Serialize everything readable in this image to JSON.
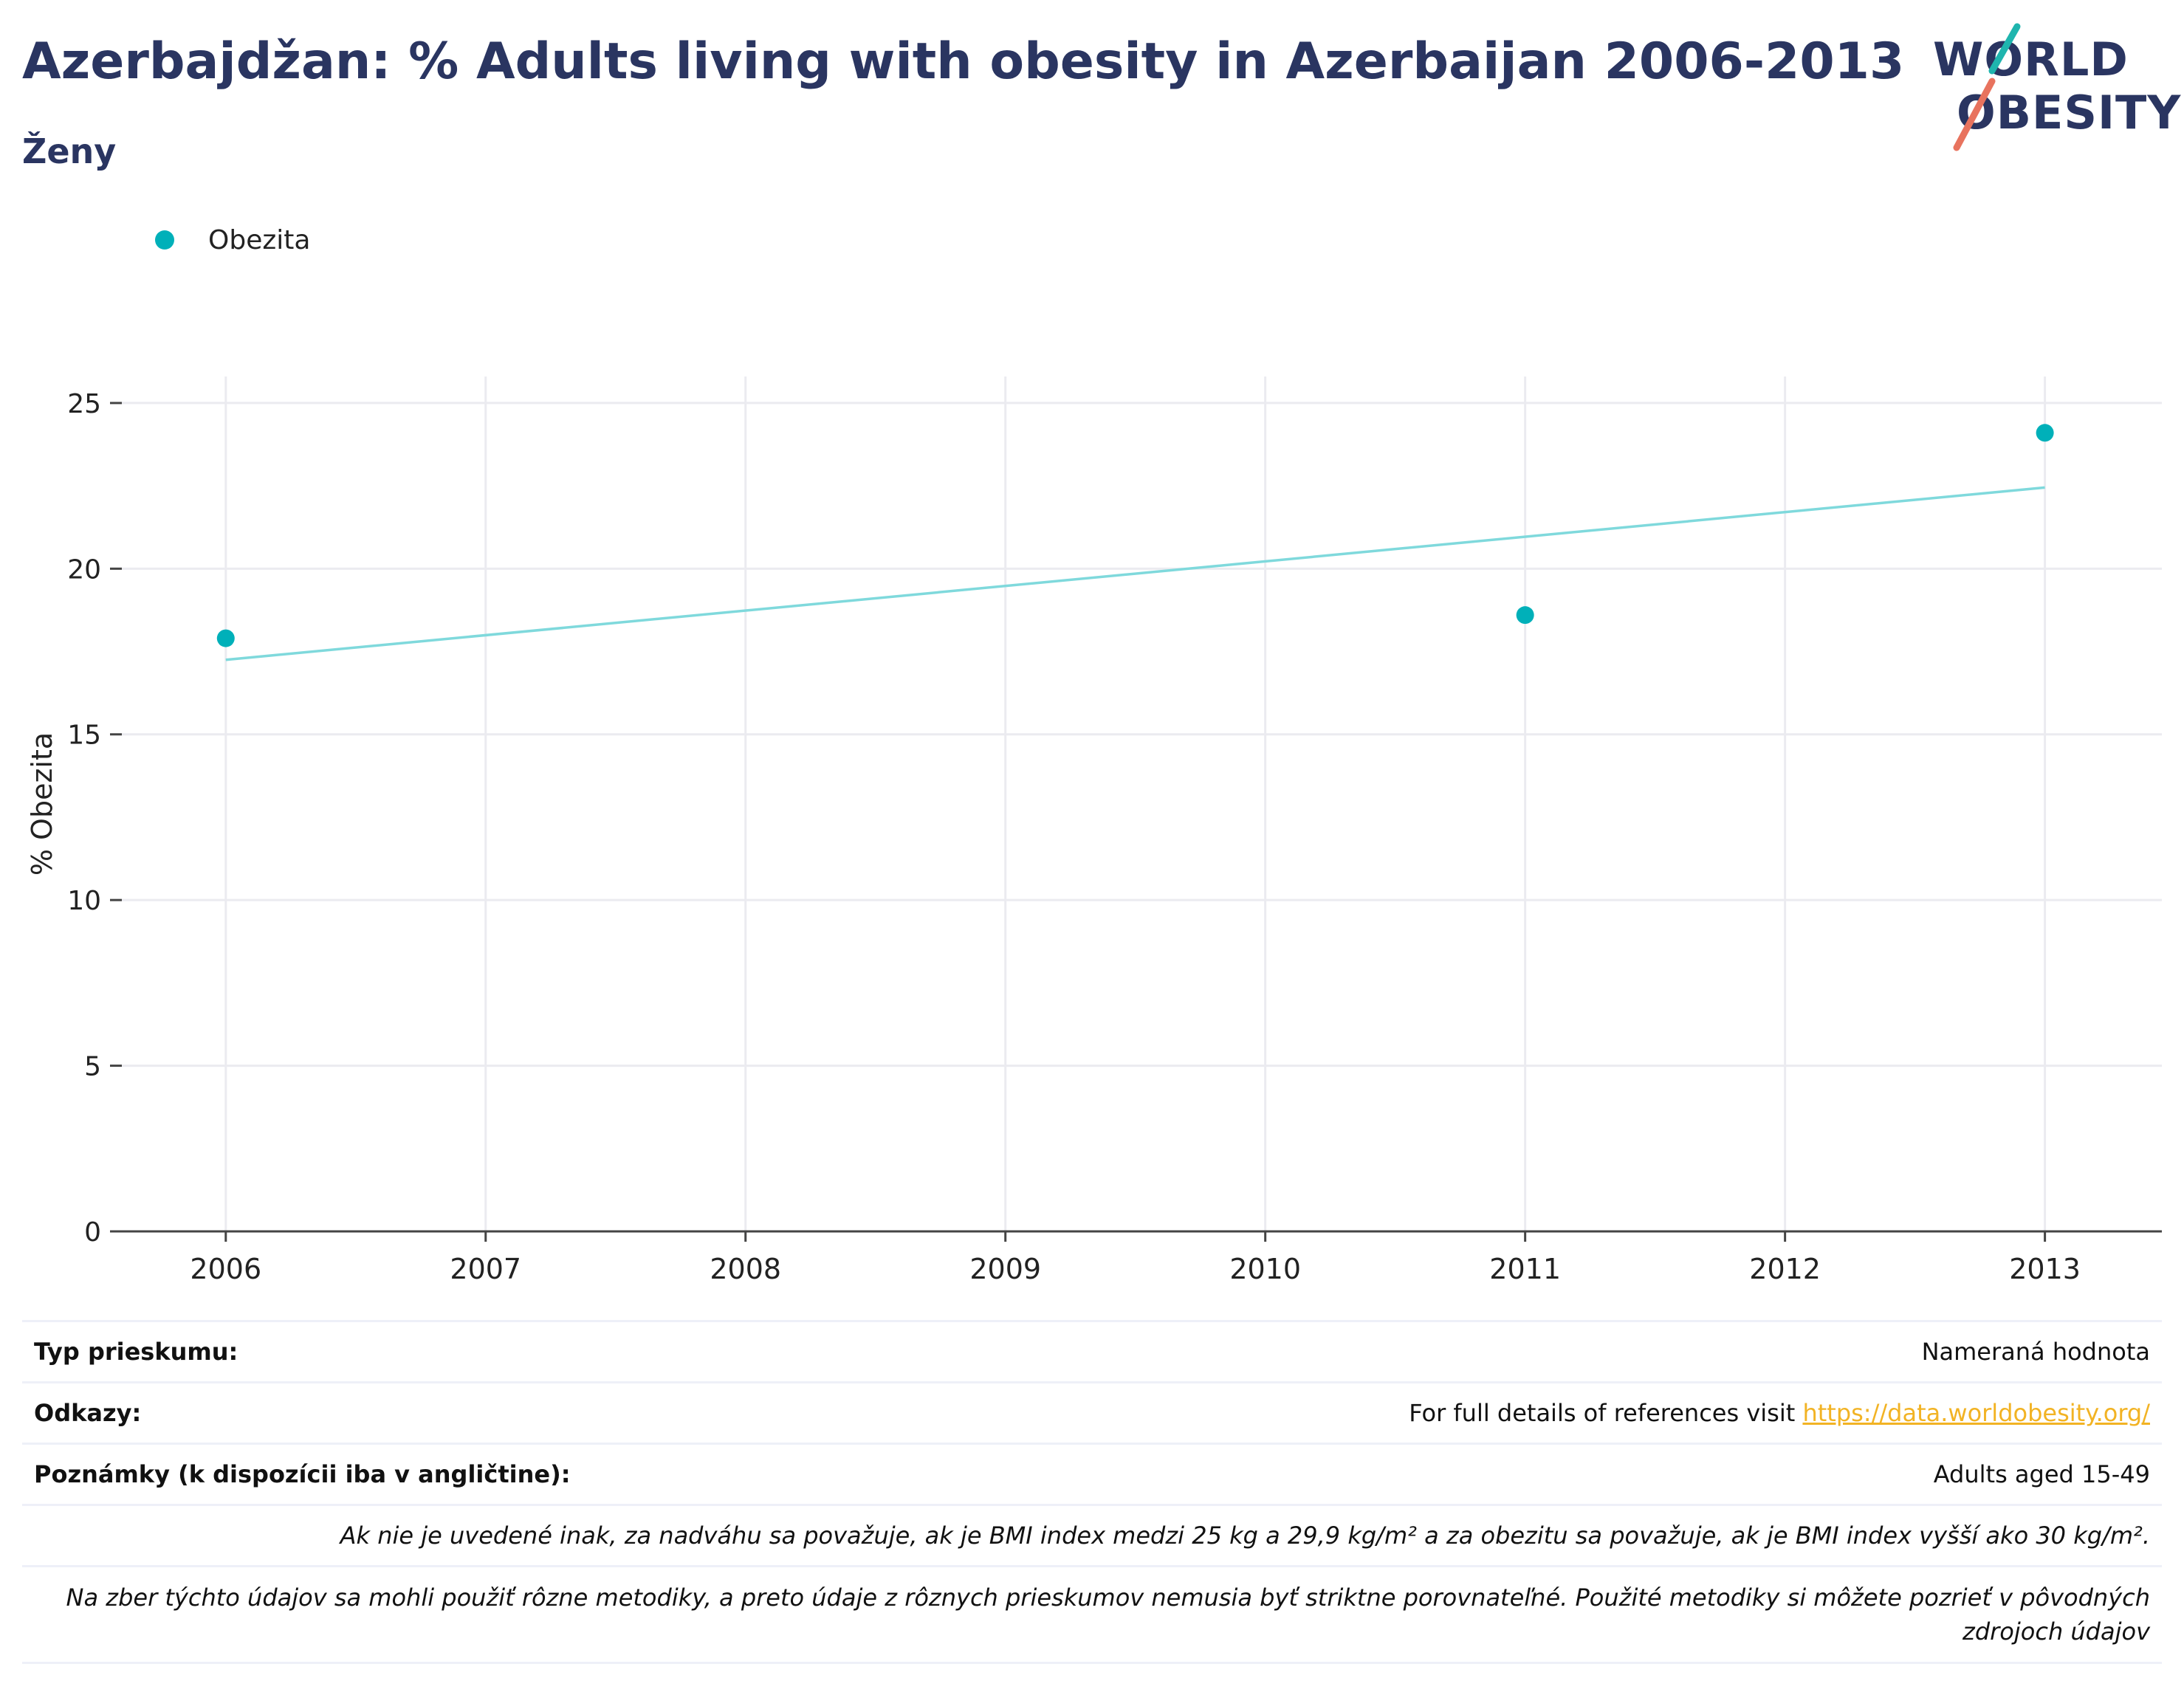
{
  "header": {
    "title": "Azerbajdžan: % Adults living with obesity in Azerbaijan 2006-2013",
    "subtitle": "Ženy"
  },
  "logo": {
    "line1": "WORLD",
    "line2": "OBESITY",
    "accent1": "#1fb5ae",
    "accent2": "#e8735e"
  },
  "legend": {
    "label": "Obezita",
    "color": "#00b0b9"
  },
  "chart_data": {
    "type": "scatter",
    "ylabel": "% Obezita",
    "xlabel": "",
    "x_ticks": [
      "2006",
      "2007",
      "2008",
      "2009",
      "2010",
      "2011",
      "2012",
      "2013"
    ],
    "y_ticks": [
      "0",
      "5",
      "10",
      "15",
      "20",
      "25"
    ],
    "xlim": [
      2005.6,
      2013.45
    ],
    "ylim": [
      0,
      25.8
    ],
    "grid": true,
    "legend_position": "top-left",
    "series": [
      {
        "name": "Obezita",
        "color": "#00b0b9",
        "points": [
          {
            "x": 2006,
            "y": 17.9
          },
          {
            "x": 2011,
            "y": 18.6
          },
          {
            "x": 2013,
            "y": 24.1
          }
        ]
      }
    ],
    "trendline": {
      "color": "#7fd9dc",
      "start": {
        "x": 2006,
        "y": 17.25
      },
      "end": {
        "x": 2013,
        "y": 22.45
      }
    }
  },
  "footer": {
    "survey_label": "Typ prieskumu:",
    "survey_value": "Nameraná hodnota",
    "refs_label": "Odkazy:",
    "refs_text": "For full details of references visit ",
    "refs_link": "https://data.worldobesity.org/",
    "notes_label": "Poznámky (k dispozícii iba v angličtine):",
    "notes_value": "Adults aged 15-49",
    "bmi_note": "Ak nie je uvedené inak, za nadváhu sa považuje, ak je BMI index medzi 25 kg a 29,9 kg/m² a za obezitu sa považuje, ak je BMI index vyšší ako 30 kg/m².",
    "method_note": "Na zber týchto údajov sa mohli použiť rôzne metodiky, a preto údaje z rôznych prieskumov nemusia byť striktne porovnateľné. Použité metodiky si môžete pozrieť v pôvodných zdrojoch údajov"
  }
}
